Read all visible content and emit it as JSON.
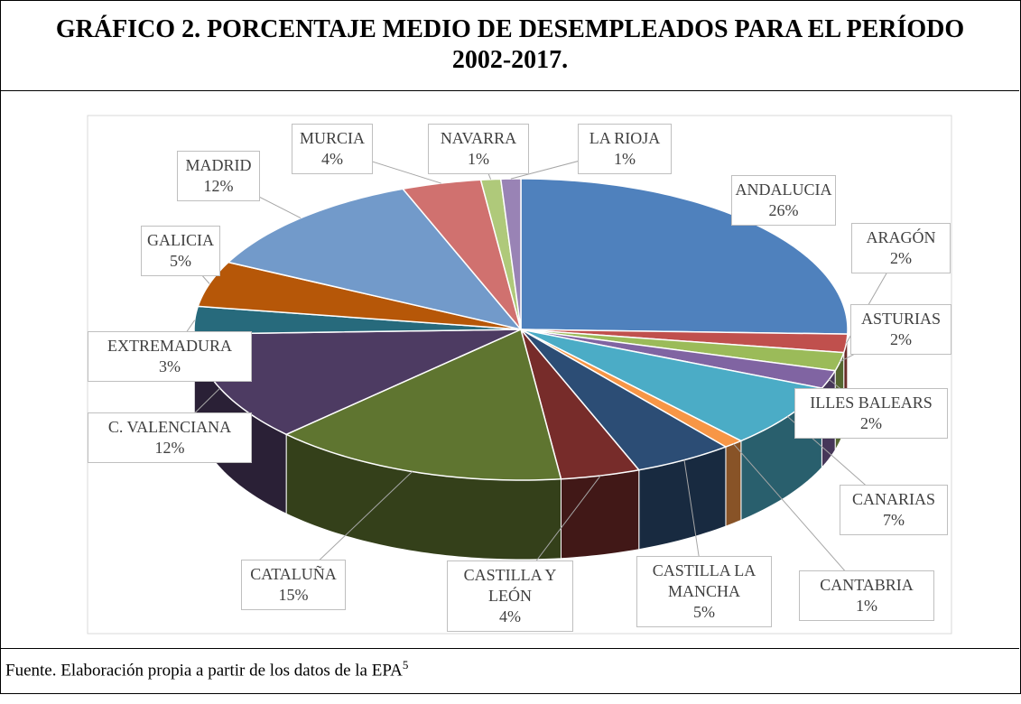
{
  "chart_data": {
    "type": "pie",
    "title": "GRÁFICO 2. PORCENTAJE MEDIO DE DESEMPLEADOS PARA EL PERÍODO 2002-2017.",
    "categories": [
      "ANDALUCIA",
      "ARAGÓN",
      "ASTURIAS",
      "ILLES BALEARS",
      "CANARIAS",
      "CANTABRIA",
      "CASTILLA LA MANCHA",
      "CASTILLA Y LEÓN",
      "CATALUÑA",
      "C. VALENCIANA",
      "EXTREMADURA",
      "GALICIA",
      "MADRID",
      "MURCIA",
      "NAVARRA",
      "LA RIOJA"
    ],
    "values": [
      26,
      2,
      2,
      2,
      7,
      1,
      5,
      4,
      15,
      12,
      3,
      5,
      12,
      4,
      1,
      1
    ],
    "value_labels": [
      "26%",
      "2%",
      "2%",
      "2%",
      "7%",
      "1%",
      "5%",
      "4%",
      "15%",
      "12%",
      "3%",
      "5%",
      "12%",
      "4%",
      "1%",
      "1%"
    ],
    "colors": [
      "#4f81bd",
      "#c0504d",
      "#9bbb59",
      "#8064a2",
      "#4bacc6",
      "#f79646",
      "#2c4d75",
      "#772c2a",
      "#5f7530",
      "#4d3b62",
      "#276a7c",
      "#b65708",
      "#729aca",
      "#d0716f",
      "#afc97a",
      "#9983b5"
    ]
  },
  "footer": {
    "text": "Fuente. Elaboración propia a partir de los datos de la EPA",
    "footnote": "5"
  }
}
